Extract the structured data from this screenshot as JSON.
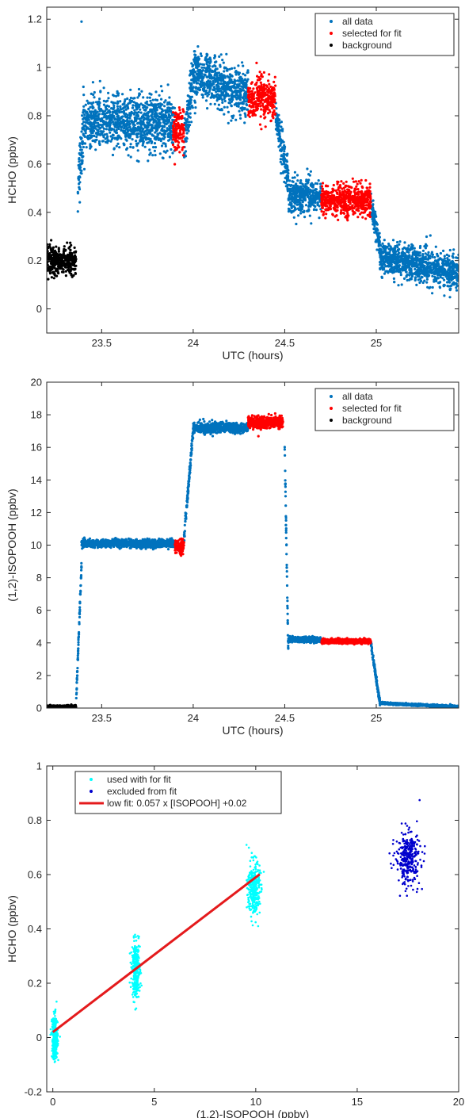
{
  "colors": {
    "all_data": "#0072BD",
    "selected": "#FF0000",
    "background": "#000000",
    "used": "#00FFFF",
    "excluded": "#0000CD",
    "fit_line": "#E41A1C",
    "axes": "#262626"
  },
  "chart_data": [
    {
      "type": "scatter",
      "xlabel": "UTC (hours)",
      "ylabel": "HCHO (ppbv)",
      "xlim": [
        23.2,
        25.45
      ],
      "ylim": [
        -0.1,
        1.25
      ],
      "xticks": [
        23.5,
        24,
        24.5,
        25
      ],
      "xtick_labels": [
        "23.5",
        "24",
        "24.5",
        "25"
      ],
      "yticks": [
        0,
        0.2,
        0.4,
        0.6,
        0.8,
        1,
        1.2
      ],
      "ytick_labels": [
        "0",
        "0.2",
        "0.4",
        "0.6",
        "0.8",
        "1",
        "1.2"
      ],
      "legend_position": "top-right",
      "legend": [
        {
          "label": "all data",
          "color": "#0072BD"
        },
        {
          "label": "selected for fit",
          "color": "#FF0000"
        },
        {
          "label": "background",
          "color": "#000000"
        }
      ],
      "series": [
        {
          "name": "all data",
          "color": "#0072BD",
          "segments": [
            {
              "x0": 23.37,
              "x1": 23.4,
              "y0": 0.5,
              "y1": 0.75,
              "spread": 0.06
            },
            {
              "x0": 23.4,
              "x1": 23.9,
              "y": 0.77,
              "spread": 0.055
            },
            {
              "x0": 23.95,
              "x1": 24.0,
              "y0": 0.68,
              "y1": 0.96,
              "spread": 0.05
            },
            {
              "x0": 24.0,
              "x1": 24.3,
              "y0": 0.98,
              "y1": 0.88,
              "spread": 0.05
            },
            {
              "x0": 24.45,
              "x1": 24.52,
              "y0": 0.8,
              "y1": 0.52,
              "spread": 0.04
            },
            {
              "x0": 24.52,
              "x1": 24.7,
              "y": 0.47,
              "spread": 0.035
            },
            {
              "x0": 24.97,
              "x1": 25.02,
              "y0": 0.43,
              "y1": 0.26,
              "spread": 0.03
            },
            {
              "x0": 25.02,
              "x1": 25.45,
              "y0": 0.21,
              "y1": 0.15,
              "spread": 0.035
            }
          ],
          "outliers": [
            {
              "x": 23.39,
              "y": 1.19
            }
          ]
        },
        {
          "name": "selected for fit",
          "color": "#FF0000",
          "segments": [
            {
              "x0": 23.89,
              "x1": 23.95,
              "y": 0.74,
              "spread": 0.045
            },
            {
              "x0": 24.3,
              "x1": 24.45,
              "y": 0.87,
              "spread": 0.045
            },
            {
              "x0": 24.7,
              "x1": 24.97,
              "y": 0.45,
              "spread": 0.03
            }
          ]
        },
        {
          "name": "background",
          "color": "#000000",
          "segments": [
            {
              "x0": 23.2,
              "x1": 23.36,
              "y": 0.2,
              "spread": 0.03
            }
          ]
        }
      ]
    },
    {
      "type": "scatter",
      "xlabel": "UTC (hours)",
      "ylabel": "(1,2)-ISOPOOH (ppbv)",
      "xlim": [
        23.2,
        25.45
      ],
      "ylim": [
        0,
        20
      ],
      "xticks": [
        23.5,
        24,
        24.5,
        25
      ],
      "xtick_labels": [
        "23.5",
        "24",
        "24.5",
        "25"
      ],
      "yticks": [
        0,
        2,
        4,
        6,
        8,
        10,
        12,
        14,
        16,
        18,
        20
      ],
      "ytick_labels": [
        "0",
        "2",
        "4",
        "6",
        "8",
        "10",
        "12",
        "14",
        "16",
        "18",
        "20"
      ],
      "legend_position": "top-right",
      "legend": [
        {
          "label": "all data",
          "color": "#0072BD"
        },
        {
          "label": "selected for fit",
          "color": "#FF0000"
        },
        {
          "label": "background",
          "color": "#000000"
        }
      ],
      "series": [
        {
          "name": "all data",
          "color": "#0072BD",
          "segments": [
            {
              "x0": 23.36,
              "x1": 23.39,
              "y0": 0.2,
              "y1": 8.8,
              "spread": 0.15
            },
            {
              "x0": 23.39,
              "x1": 23.9,
              "y": 10.1,
              "spread": 0.12
            },
            {
              "x0": 23.95,
              "x1": 24.0,
              "y0": 10.5,
              "y1": 17.0,
              "spread": 0.2
            },
            {
              "x0": 24.0,
              "x1": 24.3,
              "y": 17.2,
              "spread": 0.15
            },
            {
              "x0": 24.5,
              "x1": 24.52,
              "y0": 16.0,
              "y1": 3.0,
              "spread": 0.2
            },
            {
              "x0": 24.52,
              "x1": 24.7,
              "y": 4.2,
              "spread": 0.08
            },
            {
              "x0": 24.97,
              "x1": 25.02,
              "y0": 4.0,
              "y1": 0.3,
              "spread": 0.1
            },
            {
              "x0": 25.02,
              "x1": 25.45,
              "y0": 0.3,
              "y1": 0.08,
              "spread": 0.03
            }
          ]
        },
        {
          "name": "selected for fit",
          "color": "#FF0000",
          "segments": [
            {
              "x0": 23.9,
              "x1": 23.95,
              "y": 9.9,
              "spread": 0.2
            },
            {
              "x0": 24.3,
              "x1": 24.49,
              "y": 17.55,
              "spread": 0.18
            },
            {
              "x0": 24.7,
              "x1": 24.97,
              "y": 4.1,
              "spread": 0.07
            }
          ]
        },
        {
          "name": "background",
          "color": "#000000",
          "segments": [
            {
              "x0": 23.2,
              "x1": 23.36,
              "y": 0.1,
              "spread": 0.03
            }
          ]
        }
      ]
    },
    {
      "type": "scatter",
      "xlabel": "(1,2)-ISOPOOH (ppbv)",
      "ylabel": "HCHO (ppbv)",
      "xlim": [
        -0.3,
        20
      ],
      "ylim": [
        -0.2,
        1
      ],
      "xticks": [
        0,
        5,
        10,
        15,
        20
      ],
      "xtick_labels": [
        "0",
        "5",
        "10",
        "15",
        "20"
      ],
      "yticks": [
        -0.2,
        0,
        0.2,
        0.4,
        0.6,
        0.8,
        1
      ],
      "ytick_labels": [
        "-0.2",
        "0",
        "0.2",
        "0.4",
        "0.6",
        "0.8",
        "1"
      ],
      "legend_position": "top-left",
      "legend": [
        {
          "label": "used with for fit",
          "color": "#00FFFF",
          "kind": "marker"
        },
        {
          "label": "excluded from fit",
          "color": "#0000CD",
          "kind": "marker"
        },
        {
          "label": "low fit: 0.057 x [ISOPOOH] +0.02",
          "color": "#E41A1C",
          "kind": "line"
        }
      ],
      "clusters": [
        {
          "name": "used with for fit",
          "color": "#00FFFF",
          "x": 0.1,
          "y": 0.0,
          "x_spread": 0.07,
          "y_spread": 0.04
        },
        {
          "name": "used with for fit",
          "color": "#00FFFF",
          "x": 4.1,
          "y": 0.25,
          "x_spread": 0.1,
          "y_spread": 0.05
        },
        {
          "name": "used with for fit",
          "color": "#00FFFF",
          "x": 9.9,
          "y": 0.55,
          "x_spread": 0.15,
          "y_spread": 0.05
        },
        {
          "name": "excluded from fit",
          "color": "#0000CD",
          "x": 17.5,
          "y": 0.66,
          "x_spread": 0.3,
          "y_spread": 0.05
        }
      ],
      "fit": {
        "slope": 0.057,
        "intercept": 0.02,
        "x_range": [
          0,
          10.2
        ]
      }
    }
  ]
}
